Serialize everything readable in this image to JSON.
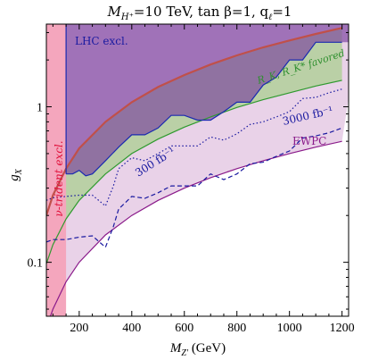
{
  "chart_data": {
    "type": "area",
    "title_main": "M",
    "title_sub": "H⁺",
    "title_rest": "=10 TeV, tan β=1, q",
    "title_tail_sub": "ℓ",
    "title_tail": "=1",
    "xlabel_main": "M",
    "xlabel_sub": "Z'",
    "xlabel_unit": " (GeV)",
    "ylabel_main": "g",
    "ylabel_sub": "X",
    "xlim": [
      75,
      1225
    ],
    "ylim": [
      0.045,
      3.4
    ],
    "yscale": "log",
    "xticks": [
      200,
      400,
      600,
      800,
      1000,
      1200
    ],
    "xtick_labels": [
      "200",
      "400",
      "600",
      "800",
      "1000",
      "1200"
    ],
    "yticks": [
      0.1,
      1
    ],
    "ytick_labels": [
      "0.1",
      "1"
    ],
    "grid": false,
    "regions": [
      {
        "label": "ν-trident excl.",
        "color": "#f4a6bd",
        "x_range": [
          75,
          150
        ]
      },
      {
        "label": "LHC excl.",
        "color": "#7a3f9e",
        "x_from": 150,
        "boundary_x": [
          150,
          175,
          200,
          225,
          250,
          300,
          350,
          400,
          450,
          500,
          550,
          600,
          650,
          700,
          750,
          800,
          850,
          900,
          950,
          1000,
          1050,
          1100,
          1150,
          1200
        ],
        "boundary_y": [
          0.37,
          0.37,
          0.39,
          0.36,
          0.37,
          0.45,
          0.55,
          0.66,
          0.66,
          0.73,
          0.88,
          0.88,
          0.82,
          0.82,
          0.93,
          1.07,
          1.07,
          1.38,
          1.55,
          2.0,
          2.0,
          2.6,
          2.6,
          2.6
        ]
      },
      {
        "label": "R_K, R_K* favored",
        "color": "#b8cfa6",
        "upper_x": [
          75,
          100,
          150,
          200,
          300,
          400,
          500,
          600,
          700,
          800,
          900,
          1000,
          1100,
          1200
        ],
        "upper_y": [
          0.2,
          0.27,
          0.4,
          0.54,
          0.8,
          1.07,
          1.34,
          1.6,
          1.87,
          2.14,
          2.41,
          2.67,
          2.94,
          3.21
        ],
        "lower_x": [
          75,
          100,
          150,
          200,
          300,
          400,
          500,
          600,
          700,
          800,
          900,
          1000,
          1100,
          1200
        ],
        "lower_y": [
          0.098,
          0.13,
          0.19,
          0.25,
          0.37,
          0.5,
          0.62,
          0.74,
          0.86,
          0.99,
          1.11,
          1.23,
          1.36,
          1.48
        ]
      },
      {
        "label": "EWPC",
        "color": "#e8cfe6",
        "boundary_x": [
          75,
          100,
          150,
          200,
          300,
          400,
          500,
          600,
          700,
          800,
          900,
          1000,
          1100,
          1200
        ],
        "boundary_y": [
          0.038,
          0.05,
          0.075,
          0.1,
          0.15,
          0.2,
          0.25,
          0.3,
          0.35,
          0.4,
          0.45,
          0.5,
          0.55,
          0.6
        ]
      }
    ],
    "series": [
      {
        "label": "300 fb⁻¹",
        "style": "dotted",
        "color": "#1a1aa0",
        "x": [
          75,
          100,
          150,
          200,
          250,
          300,
          330,
          350,
          400,
          450,
          500,
          550,
          600,
          650,
          700,
          750,
          800,
          850,
          900,
          950,
          1000,
          1050,
          1100,
          1150,
          1200
        ],
        "y": [
          0.25,
          0.26,
          0.265,
          0.27,
          0.27,
          0.23,
          0.31,
          0.4,
          0.47,
          0.45,
          0.5,
          0.56,
          0.56,
          0.56,
          0.64,
          0.61,
          0.67,
          0.77,
          0.8,
          0.86,
          0.93,
          1.13,
          1.15,
          1.23,
          1.3
        ]
      },
      {
        "label": "3000 fb⁻¹",
        "style": "dashed",
        "color": "#1a1aa0",
        "x": [
          75,
          100,
          150,
          200,
          250,
          300,
          330,
          350,
          400,
          450,
          500,
          550,
          600,
          650,
          700,
          750,
          800,
          850,
          900,
          950,
          1000,
          1050,
          1100,
          1150,
          1200
        ],
        "y": [
          0.135,
          0.14,
          0.14,
          0.145,
          0.148,
          0.125,
          0.17,
          0.22,
          0.265,
          0.258,
          0.28,
          0.31,
          0.31,
          0.31,
          0.37,
          0.34,
          0.37,
          0.43,
          0.44,
          0.48,
          0.52,
          0.63,
          0.65,
          0.68,
          0.73
        ]
      }
    ],
    "annotations": [
      {
        "text": "LHC excl.",
        "color": "#1a1aa0"
      },
      {
        "text": "ν-trident excl.",
        "color": "#e0103a"
      },
      {
        "text": "R_K, R_K* favored",
        "color": "#2f8f2f"
      },
      {
        "text": "300 fb⁻¹",
        "color": "#1a1aa0"
      },
      {
        "text": "3000 fb⁻¹",
        "color": "#1a1aa0"
      },
      {
        "text": "EWPC",
        "color": "#8a1a8a"
      }
    ],
    "colors": {
      "lhc_fill": "#7a3f9e",
      "lhc_line": "#1a2ab0",
      "rk_fill": "#b5cf9e",
      "rk_line": "#2f9a2f",
      "ewpc_fill": "#e9d2e8",
      "ewpc_line": "#8a1a8a",
      "trident_fill": "#f4a6bd",
      "trident_line": "#e0103a",
      "upper_bound_line": "#c0504a",
      "proj_line": "#1a1aa0"
    }
  }
}
